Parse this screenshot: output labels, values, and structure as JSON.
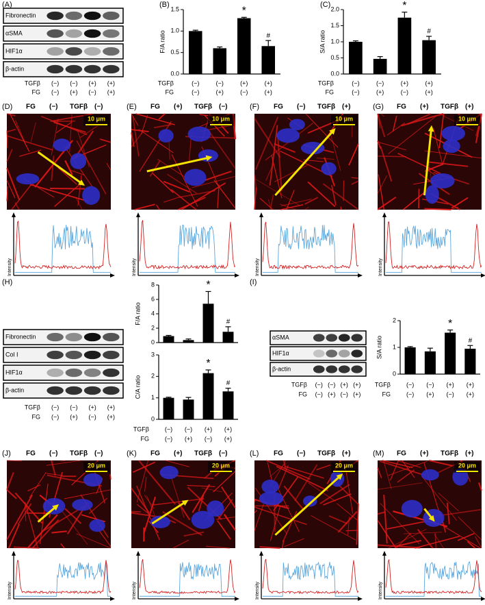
{
  "blots": [
    {
      "label": "(A)",
      "rows": [
        "Fibronectin",
        "αSMA",
        "HIF1α",
        "β-actin"
      ],
      "conditions": [
        {
          "name": "TGFβ",
          "states": [
            "(−)",
            "(−)",
            "(+)",
            "(+)"
          ]
        },
        {
          "name": "FG",
          "states": [
            "(−)",
            "(+)",
            "(−)",
            "(+)"
          ]
        }
      ]
    },
    {
      "label": "(H)",
      "rows": [
        "Fibronectin",
        "Col I",
        "HIF1α",
        "β-actin"
      ],
      "conditions": [
        {
          "name": "TGFβ",
          "states": [
            "(−)",
            "(−)",
            "(+)",
            "(+)"
          ]
        },
        {
          "name": "FG",
          "states": [
            "(−)",
            "(+)",
            "(−)",
            "(+)"
          ]
        }
      ]
    },
    {
      "label": "(I)",
      "rows": [
        "αSMA",
        "HIF1α",
        "β-actin"
      ],
      "conditions": [
        {
          "name": "TGFβ",
          "states": [
            "(−)",
            "(−)",
            "(+)",
            "(+)"
          ]
        },
        {
          "name": "FG",
          "states": [
            "(−)",
            "(+)",
            "(−)",
            "(+)"
          ]
        }
      ]
    }
  ],
  "chart_data": [
    {
      "type": "bar",
      "label": "(B)",
      "ylabel": "F/A ratio",
      "color": "#000000",
      "values": [
        1.0,
        0.6,
        1.3,
        0.65
      ],
      "errors": [
        0.02,
        0.03,
        0.02,
        0.13
      ],
      "annotations": [
        null,
        null,
        "*",
        "#"
      ],
      "ylim": [
        0,
        1.5
      ],
      "yticks": [
        {
          "value": 0,
          "label": "0.0"
        },
        {
          "value": 0.5,
          "label": "0.5"
        },
        {
          "value": 1,
          "label": "1.0"
        },
        {
          "value": 1.5,
          "label": "1.5"
        }
      ],
      "conditions": [
        {
          "name": "TGFβ",
          "states": [
            "(−)",
            "(−)",
            "(+)",
            "(+)"
          ]
        },
        {
          "name": "FG",
          "states": [
            "(−)",
            "(+)",
            "(−)",
            "(+)"
          ]
        }
      ]
    },
    {
      "type": "bar",
      "label": "(C)",
      "ylabel": "S/A ratio",
      "color": "#000000",
      "values": [
        1.0,
        0.47,
        1.75,
        1.05
      ],
      "errors": [
        0.03,
        0.07,
        0.17,
        0.12
      ],
      "annotations": [
        null,
        null,
        "*",
        "#"
      ],
      "ylim": [
        0,
        2
      ],
      "yticks": [
        {
          "value": 0,
          "label": "0.0"
        },
        {
          "value": 0.5,
          "label": "0.5"
        },
        {
          "value": 1,
          "label": "1.0"
        },
        {
          "value": 1.5,
          "label": "1.5"
        },
        {
          "value": 2,
          "label": "2.0"
        }
      ],
      "conditions": [
        {
          "name": "TGFβ",
          "states": [
            "(−)",
            "(−)",
            "(+)",
            "(+)"
          ]
        },
        {
          "name": "FG",
          "states": [
            "(−)",
            "(+)",
            "(−)",
            "(+)"
          ]
        }
      ]
    },
    {
      "type": "bar",
      "ylabel": "F/A ratio",
      "color": "#000000",
      "values": [
        0.9,
        0.35,
        5.4,
        1.5
      ],
      "errors": [
        0.1,
        0.15,
        1.7,
        0.7
      ],
      "annotations": [
        null,
        null,
        "*",
        "#"
      ],
      "ylim": [
        0,
        8
      ],
      "yticks": [
        0,
        2,
        4,
        6,
        8
      ]
    },
    {
      "type": "bar",
      "ylabel": "C/A ratio",
      "color": "#000000",
      "values": [
        1.0,
        0.92,
        2.15,
        1.3
      ],
      "errors": [
        0.03,
        0.1,
        0.15,
        0.15
      ],
      "annotations": [
        null,
        null,
        "*",
        "#"
      ],
      "ylim": [
        0,
        3
      ],
      "yticks": [
        0,
        1,
        2,
        3
      ],
      "conditions": [
        {
          "name": "TGFβ",
          "states": [
            "(−)",
            "(−)",
            "(+)",
            "(+)"
          ]
        },
        {
          "name": "FG",
          "states": [
            "(−)",
            "(+)",
            "(−)",
            "(+)"
          ]
        }
      ]
    },
    {
      "type": "bar",
      "ylabel": "S/A ratio",
      "color": "#000000",
      "values": [
        1.0,
        0.85,
        1.55,
        0.95
      ],
      "errors": [
        0.03,
        0.12,
        0.1,
        0.12
      ],
      "annotations": [
        null,
        null,
        "*",
        "#"
      ],
      "ylim": [
        0,
        2
      ],
      "yticks": [
        0,
        1,
        2
      ],
      "conditions": [
        {
          "name": "TGFβ",
          "states": [
            "(−)",
            "(−)",
            "(+)",
            "(+)"
          ]
        },
        {
          "name": "FG",
          "states": [
            "(−)",
            "(+)",
            "(−)",
            "(+)"
          ]
        }
      ]
    }
  ],
  "micrographs": [
    {
      "label": "(D)",
      "header": [
        "FG",
        "(−)",
        "TGFβ",
        "(−)"
      ],
      "scale": "10 μm",
      "ylabel": "Intensity"
    },
    {
      "label": "(E)",
      "header": [
        "FG",
        "(+)",
        "TGFβ",
        "(−)"
      ],
      "scale": "10 μm",
      "ylabel": "Intensity"
    },
    {
      "label": "(F)",
      "header": [
        "FG",
        "(−)",
        "TGFβ",
        "(+)"
      ],
      "scale": "10 μm",
      "ylabel": "Intensity"
    },
    {
      "label": "(G)",
      "header": [
        "FG",
        "(+)",
        "TGFβ",
        "(+)"
      ],
      "scale": "10 μm",
      "ylabel": "Intensity"
    },
    {
      "label": "(J)",
      "header": [
        "FG",
        "(−)",
        "TGFβ",
        "(−)"
      ],
      "scale": "20 μm",
      "ylabel": "Intensity"
    },
    {
      "label": "(K)",
      "header": [
        "FG",
        "(+)",
        "TGFβ",
        "(−)"
      ],
      "scale": "20 μm",
      "ylabel": "Intensity"
    },
    {
      "label": "(L)",
      "header": [
        "FG",
        "(−)",
        "TGFβ",
        "(+)"
      ],
      "scale": "20 μm",
      "ylabel": "Intensity"
    },
    {
      "label": "(M)",
      "header": [
        "FG",
        "(+)",
        "TGFβ",
        "(+)"
      ],
      "scale": "20 μm",
      "ylabel": "Intensity"
    }
  ]
}
